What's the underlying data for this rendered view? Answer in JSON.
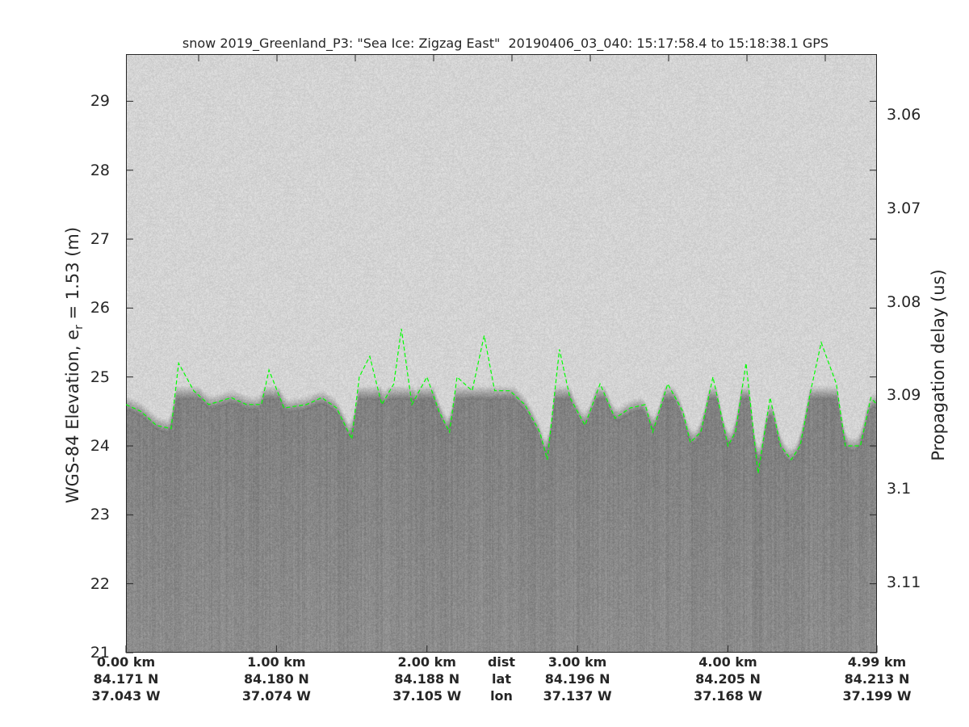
{
  "chart_data": {
    "type": "heatmap",
    "title": "snow 2019_Greenland_P3: \"Sea Ice: Zigzag East\"  20190406_03_040: 15:17:58.4 to 15:18:38.1 GPS",
    "ylabel_left": {
      "text": "WGS-84 Elevation, e",
      "sub": "r",
      "rest": " = 1.53 (m)"
    },
    "ylabel_right": "Propagation delay (us)",
    "colormap": "gray",
    "grid": false,
    "ylim_left": [
      21,
      30
    ],
    "yticks_left": [
      "29",
      "28",
      "27",
      "26",
      "25",
      "24",
      "23",
      "22",
      "21"
    ],
    "yticks_right": [
      "3.06",
      "3.07",
      "3.08",
      "3.09",
      "3.1",
      "3.11"
    ],
    "x_axis_rows": {
      "dist": [
        "0.00 km",
        "1.00 km",
        "2.00 km",
        "3.00 km",
        "4.00 km",
        "4.99 km"
      ],
      "lat": [
        "84.171 N",
        "84.180 N",
        "84.188 N",
        "84.196 N",
        "84.205 N",
        "84.213 N"
      ],
      "lon": [
        "37.043 W",
        "37.074 W",
        "37.105 W",
        "37.137 W",
        "37.168 W",
        "37.199 W"
      ],
      "row_labels": [
        "dist",
        "lat",
        "lon"
      ]
    },
    "xlim_km": [
      0,
      4.99
    ],
    "surface_layer": {
      "color": "#00ff00",
      "style": "dashed",
      "distance_km": [
        0,
        0.1,
        0.2,
        0.3,
        0.35,
        0.45,
        0.55,
        0.7,
        0.8,
        0.9,
        0.95,
        1.05,
        1.2,
        1.3,
        1.4,
        1.5,
        1.55,
        1.62,
        1.7,
        1.78,
        1.83,
        1.9,
        2.0,
        2.08,
        2.15,
        2.2,
        2.3,
        2.38,
        2.45,
        2.55,
        2.65,
        2.75,
        2.8,
        2.88,
        2.95,
        3.05,
        3.15,
        3.25,
        3.35,
        3.45,
        3.5,
        3.6,
        3.7,
        3.75,
        3.82,
        3.9,
        4.0,
        4.05,
        4.12,
        4.2,
        4.28,
        4.35,
        4.42,
        4.48,
        4.55,
        4.62,
        4.72,
        4.78,
        4.88,
        4.95,
        4.99
      ],
      "elevation_m": [
        24.6,
        24.5,
        24.3,
        24.25,
        25.2,
        24.8,
        24.6,
        24.7,
        24.6,
        24.6,
        25.1,
        24.55,
        24.6,
        24.7,
        24.55,
        24.1,
        25.0,
        25.3,
        24.6,
        24.9,
        25.7,
        24.6,
        25.0,
        24.5,
        24.2,
        25.0,
        24.8,
        25.6,
        24.8,
        24.8,
        24.6,
        24.2,
        23.8,
        25.4,
        24.7,
        24.3,
        24.9,
        24.4,
        24.55,
        24.6,
        24.2,
        24.9,
        24.5,
        24.05,
        24.2,
        25.0,
        24.0,
        24.2,
        25.2,
        23.6,
        24.7,
        24.0,
        23.8,
        24.0,
        24.8,
        25.5,
        24.9,
        24.0,
        24.0,
        24.7,
        24.6
      ]
    }
  }
}
